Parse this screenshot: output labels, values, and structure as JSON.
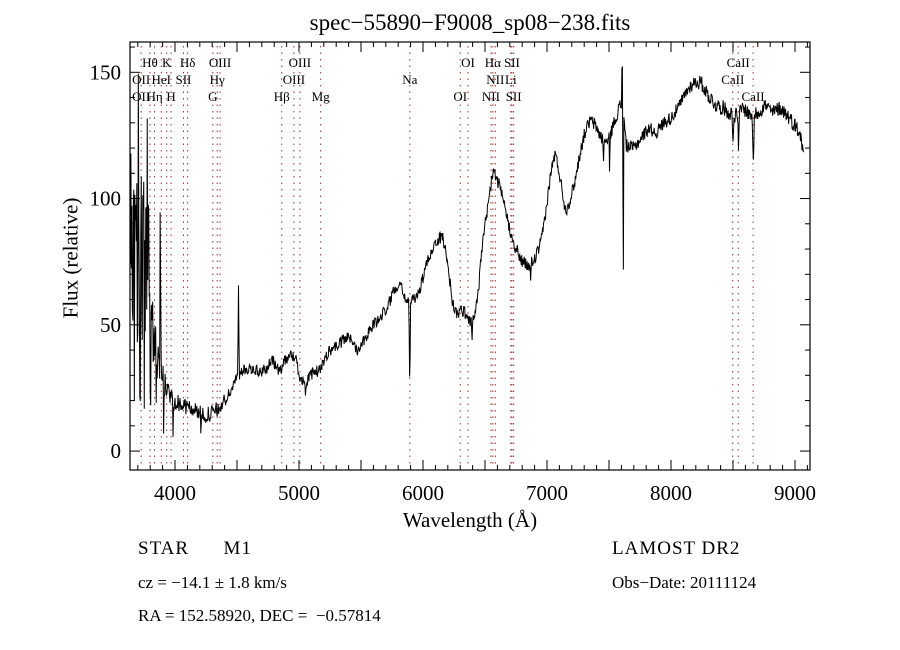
{
  "chart_data": {
    "type": "line",
    "title": "spec−55890−F9008_sp08−238.fits",
    "xlabel": "Wavelength (Å)",
    "ylabel": "Flux (relative)",
    "xlim": [
      3637,
      9121
    ],
    "ylim": [
      -7.5,
      162
    ],
    "xticks_labeled": [
      4000,
      5000,
      6000,
      7000,
      8000,
      9000
    ],
    "xtick_minor_step": 100,
    "xtick_major_step": 500,
    "yticks_labeled": [
      0,
      50,
      100,
      150
    ],
    "ytick_minor_step": 10,
    "ytick_major_step": 50,
    "grid": false,
    "legend": "none",
    "line_color": "#000000",
    "marker_line_color": "#993333",
    "frame_color": "#000000",
    "wavelength_range_plotted": [
      3640,
      9070
    ],
    "continuum_anchors": [
      [
        3640,
        75
      ],
      [
        3680,
        70
      ],
      [
        3720,
        72
      ],
      [
        3760,
        68
      ],
      [
        3800,
        55
      ],
      [
        3840,
        42
      ],
      [
        3880,
        33
      ],
      [
        3920,
        26
      ],
      [
        3960,
        22
      ],
      [
        4000,
        20
      ],
      [
        4060,
        18
      ],
      [
        4120,
        17
      ],
      [
        4180,
        16
      ],
      [
        4240,
        14
      ],
      [
        4300,
        15
      ],
      [
        4360,
        17
      ],
      [
        4420,
        21
      ],
      [
        4470,
        26
      ],
      [
        4510,
        30
      ],
      [
        4560,
        32
      ],
      [
        4620,
        33
      ],
      [
        4680,
        31
      ],
      [
        4740,
        33
      ],
      [
        4790,
        36
      ],
      [
        4840,
        31
      ],
      [
        4880,
        36
      ],
      [
        4930,
        38
      ],
      [
        4970,
        37
      ],
      [
        5010,
        29
      ],
      [
        5060,
        27
      ],
      [
        5110,
        31
      ],
      [
        5170,
        32
      ],
      [
        5220,
        38
      ],
      [
        5270,
        41
      ],
      [
        5320,
        42
      ],
      [
        5380,
        45
      ],
      [
        5430,
        44
      ],
      [
        5470,
        40
      ],
      [
        5520,
        44
      ],
      [
        5570,
        48
      ],
      [
        5620,
        51
      ],
      [
        5660,
        53
      ],
      [
        5720,
        58
      ],
      [
        5780,
        65
      ],
      [
        5820,
        67
      ],
      [
        5860,
        60
      ],
      [
        5900,
        58
      ],
      [
        5940,
        61
      ],
      [
        5980,
        65
      ],
      [
        6030,
        74
      ],
      [
        6080,
        81
      ],
      [
        6130,
        84
      ],
      [
        6160,
        85
      ],
      [
        6200,
        74
      ],
      [
        6240,
        58
      ],
      [
        6280,
        54
      ],
      [
        6320,
        56
      ],
      [
        6360,
        53
      ],
      [
        6400,
        51
      ],
      [
        6440,
        60
      ],
      [
        6480,
        82
      ],
      [
        6520,
        96
      ],
      [
        6565,
        111
      ],
      [
        6610,
        106
      ],
      [
        6650,
        98
      ],
      [
        6700,
        88
      ],
      [
        6750,
        80
      ],
      [
        6800,
        75
      ],
      [
        6850,
        73
      ],
      [
        6900,
        76
      ],
      [
        6950,
        82
      ],
      [
        7000,
        98
      ],
      [
        7030,
        110
      ],
      [
        7065,
        118
      ],
      [
        7100,
        110
      ],
      [
        7150,
        95
      ],
      [
        7190,
        100
      ],
      [
        7230,
        108
      ],
      [
        7270,
        119
      ],
      [
        7310,
        127
      ],
      [
        7350,
        131
      ],
      [
        7390,
        129
      ],
      [
        7440,
        124
      ],
      [
        7490,
        122
      ],
      [
        7540,
        130
      ],
      [
        7590,
        137
      ],
      [
        7610,
        136
      ],
      [
        7640,
        121
      ],
      [
        7700,
        120
      ],
      [
        7760,
        124
      ],
      [
        7820,
        128
      ],
      [
        7880,
        126
      ],
      [
        7940,
        130
      ],
      [
        8000,
        132
      ],
      [
        8060,
        136
      ],
      [
        8120,
        142
      ],
      [
        8180,
        146
      ],
      [
        8240,
        146
      ],
      [
        8300,
        141
      ],
      [
        8360,
        137
      ],
      [
        8420,
        136
      ],
      [
        8470,
        134
      ],
      [
        8520,
        133
      ],
      [
        8580,
        136
      ],
      [
        8640,
        133
      ],
      [
        8700,
        134
      ],
      [
        8760,
        137
      ],
      [
        8820,
        134
      ],
      [
        8880,
        136
      ],
      [
        8940,
        133
      ],
      [
        9000,
        129
      ],
      [
        9040,
        126
      ],
      [
        9070,
        117
      ]
    ],
    "spike_features": [
      [
        3672,
        -55,
        5
      ],
      [
        3705,
        68,
        6
      ],
      [
        3719,
        -62,
        5
      ],
      [
        3742,
        72,
        6
      ],
      [
        3753,
        -52,
        5
      ],
      [
        3775,
        48,
        5
      ],
      [
        3802,
        -38,
        5
      ],
      [
        3848,
        -32,
        4
      ],
      [
        3881,
        84,
        5
      ],
      [
        3908,
        -20,
        4
      ],
      [
        3983,
        -16,
        3
      ],
      [
        4209,
        -15,
        4
      ],
      [
        4512,
        37,
        7
      ],
      [
        5050,
        -6,
        5
      ],
      [
        5893,
        -34,
        7
      ],
      [
        6395,
        -8,
        5
      ],
      [
        6868,
        -7,
        6
      ],
      [
        7455,
        -11,
        5
      ],
      [
        7505,
        -15,
        4
      ],
      [
        7606,
        24,
        6
      ],
      [
        7615,
        -74,
        5
      ],
      [
        8500,
        -11,
        9
      ],
      [
        8545,
        -15,
        9
      ],
      [
        8664,
        -21,
        9
      ]
    ],
    "noise_regions": [
      [
        3637,
        3700,
        44
      ],
      [
        3700,
        3790,
        38
      ],
      [
        3790,
        3860,
        13
      ],
      [
        3860,
        3920,
        8
      ],
      [
        3920,
        4000,
        5
      ],
      [
        4000,
        4400,
        3.2
      ],
      [
        4400,
        5300,
        2.4
      ],
      [
        5300,
        6200,
        2.4
      ],
      [
        6200,
        7300,
        2.6
      ],
      [
        7300,
        8200,
        2.6
      ],
      [
        8200,
        9080,
        3.0
      ]
    ],
    "sample_step_angstrom": 4,
    "spectral_line_markers": [
      3727,
      3798,
      3835,
      3889,
      3933,
      3968,
      4068,
      4102,
      4305,
      4340,
      4363,
      4861,
      4959,
      5007,
      5175,
      5894,
      6300,
      6363,
      6548,
      6563,
      6583,
      6708,
      6717,
      6731,
      8498,
      8542,
      8662
    ],
    "spectral_line_labels": {
      "row1": [
        [
          "Hθ",
          3798
        ],
        [
          "K",
          3933
        ],
        [
          "Hδ",
          4102
        ],
        [
          "OIII",
          4363
        ],
        [
          "OIII",
          5007
        ],
        [
          "OI",
          6363
        ],
        [
          "Hα",
          6563
        ],
        [
          "SII",
          6717
        ],
        [
          "CaII",
          8542
        ]
      ],
      "row2": [
        [
          "OII",
          3727
        ],
        [
          "HeI",
          3889
        ],
        [
          "SII",
          4068
        ],
        [
          "Hγ",
          4340
        ],
        [
          "OIII",
          4959
        ],
        [
          "Na",
          5894
        ],
        [
          "NII",
          6583
        ],
        [
          "Li",
          6708
        ],
        [
          "CaII",
          8498
        ]
      ],
      "row3": [
        [
          "OII",
          3727
        ],
        [
          "Hη",
          3835
        ],
        [
          "H",
          3968
        ],
        [
          "G",
          4305
        ],
        [
          "Hβ",
          4861
        ],
        [
          "Mg",
          5175
        ],
        [
          "OI",
          6300
        ],
        [
          "NII",
          6548
        ],
        [
          "SII",
          6731
        ],
        [
          "CaII",
          8662
        ]
      ]
    }
  },
  "annotations": {
    "class_line": "STAR      M1",
    "cz_line": "cz = −14.1 ± 1.8 km/s",
    "radec_line": "RA = 152.58920, DEC =  −0.57814",
    "survey": "LAMOST DR2",
    "obs_date": "Obs−Date: 20111124"
  }
}
